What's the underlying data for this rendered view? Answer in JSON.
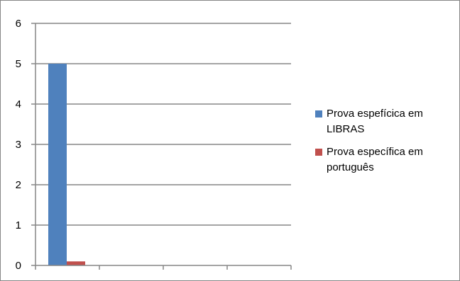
{
  "chart_data": {
    "type": "bar",
    "categories": [
      ""
    ],
    "series": [
      {
        "name": "Prova espefícica em LIBRAS",
        "values": [
          5
        ],
        "color": "#4F81BD"
      },
      {
        "name": "Prova específica em português",
        "values": [
          0.1
        ],
        "color": "#C0504D"
      }
    ],
    "title": "",
    "xlabel": "",
    "ylabel": "",
    "ylim": [
      0,
      6
    ],
    "yticks": [
      "0",
      "1",
      "2",
      "3",
      "4",
      "5",
      "6"
    ],
    "grid": true,
    "legend": "right"
  }
}
